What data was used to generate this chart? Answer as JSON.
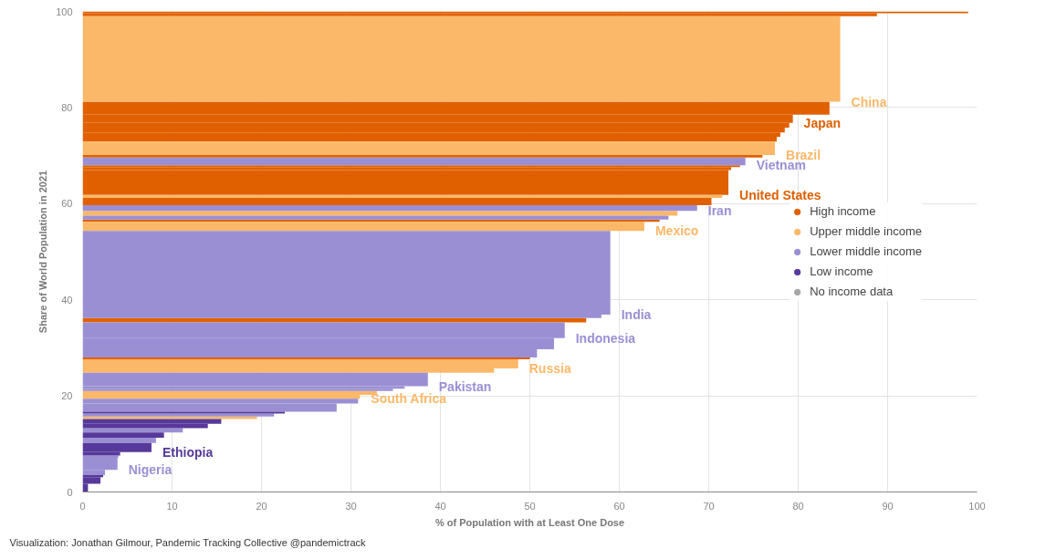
{
  "chart_data": {
    "type": "bar",
    "orientation": "horizontal",
    "xlabel": "% of Population with at Least One Dose",
    "ylabel": "Share of World Population in 2021",
    "x": [
      0.85,
      2.4,
      3.3,
      4.05,
      5.85,
      7.35,
      7.95,
      9.25,
      10.75,
      11.85,
      12.85,
      13.75,
      14.7,
      15.45,
      16.0,
      16.5,
      17.55,
      18.9,
      19.8,
      20.6,
      21.25,
      21.75,
      23.4,
      25.25,
      26.65,
      27.8,
      28.85,
      30.85,
      33.65,
      35.75,
      36.55,
      45.6,
      55.25,
      56.45,
      57.1,
      58.0,
      59.1,
      60.45,
      61.5,
      64.4,
      67.3,
      67.8,
      68.8,
      69.85,
      71.5,
      73.4,
      74.35,
      75.3,
      76.3,
      77.65,
      79.85,
      90.1,
      99.3,
      99.8
    ],
    "series": [
      {
        "name": "High income",
        "color": "#e06000",
        "values": [
          null,
          null,
          null,
          null,
          null,
          null,
          null,
          null,
          null,
          null,
          null,
          null,
          null,
          null,
          null,
          null,
          null,
          null,
          null,
          null,
          null,
          null,
          null,
          null,
          null,
          50.0,
          null,
          null,
          null,
          56.3,
          null,
          null,
          null,
          64.5,
          null,
          null,
          null,
          70.3,
          null,
          72.2,
          72.5,
          73.5,
          null,
          76.0,
          null,
          77.6,
          78.0,
          78.5,
          79.0,
          79.4,
          83.5,
          null,
          88.8,
          99.0
        ],
        "value_labels": [
          null,
          null,
          null,
          null,
          null,
          null,
          null,
          null,
          null,
          null,
          null,
          null,
          null,
          null,
          null,
          null,
          null,
          null,
          null,
          null,
          null,
          null,
          null,
          null,
          null,
          null,
          null,
          null,
          null,
          null,
          null,
          null,
          null,
          null,
          null,
          null,
          null,
          null,
          null,
          "United States",
          null,
          null,
          null,
          null,
          null,
          null,
          null,
          null,
          null,
          "Japan",
          null,
          null,
          null,
          null
        ]
      },
      {
        "name": "Upper middle income",
        "color": "#fbb868",
        "values": [
          null,
          null,
          null,
          null,
          null,
          null,
          null,
          null,
          null,
          null,
          null,
          null,
          null,
          19.5,
          null,
          null,
          null,
          null,
          31.0,
          32.9,
          null,
          null,
          null,
          46.0,
          48.7,
          null,
          null,
          null,
          null,
          null,
          null,
          null,
          62.8,
          null,
          null,
          66.5,
          null,
          null,
          71.5,
          null,
          null,
          null,
          null,
          null,
          77.4,
          null,
          null,
          null,
          null,
          null,
          null,
          84.7,
          null,
          null
        ],
        "value_labels": [
          null,
          null,
          null,
          null,
          null,
          null,
          null,
          null,
          null,
          null,
          null,
          null,
          null,
          null,
          null,
          null,
          null,
          null,
          "South Africa",
          null,
          null,
          null,
          null,
          null,
          "Russia",
          null,
          null,
          null,
          null,
          null,
          null,
          null,
          "Mexico",
          null,
          null,
          null,
          null,
          null,
          null,
          null,
          null,
          null,
          null,
          null,
          "Brazil",
          null,
          null,
          null,
          null,
          null,
          null,
          "China",
          null,
          null
        ]
      },
      {
        "name": "Lower middle income",
        "color": "#9b8fd4",
        "values": [
          null,
          null,
          null,
          2.5,
          3.9,
          4.0,
          null,
          null,
          8.2,
          null,
          11.2,
          null,
          null,
          null,
          21.4,
          null,
          28.4,
          30.8,
          null,
          null,
          34.7,
          36.0,
          38.6,
          null,
          null,
          null,
          50.8,
          52.7,
          53.9,
          null,
          58.0,
          59.0,
          null,
          null,
          65.5,
          null,
          68.7,
          null,
          null,
          null,
          null,
          null,
          74.1,
          null,
          null,
          null,
          null,
          null,
          null,
          null,
          null,
          null,
          null,
          null
        ],
        "value_labels": [
          null,
          null,
          null,
          null,
          "Nigeria",
          null,
          null,
          null,
          null,
          null,
          null,
          null,
          null,
          null,
          null,
          null,
          null,
          null,
          null,
          null,
          null,
          null,
          "Pakistan",
          null,
          null,
          null,
          null,
          null,
          "Indonesia",
          null,
          null,
          "India",
          null,
          null,
          null,
          null,
          "Iran",
          null,
          null,
          null,
          null,
          null,
          "Vietnam",
          null,
          null,
          null,
          null,
          null,
          null,
          null,
          null,
          null,
          null,
          null
        ]
      },
      {
        "name": "Low income",
        "color": "#56399a",
        "values": [
          0.6,
          2.0,
          2.3,
          null,
          null,
          null,
          4.2,
          7.7,
          null,
          9.1,
          null,
          14.0,
          15.5,
          null,
          null,
          22.6,
          null,
          null,
          null,
          null,
          null,
          null,
          null,
          null,
          null,
          null,
          null,
          null,
          null,
          null,
          null,
          null,
          null,
          null,
          null,
          null,
          null,
          null,
          null,
          null,
          null,
          null,
          null,
          null,
          null,
          null,
          null,
          null,
          null,
          null,
          null,
          null,
          null,
          null
        ],
        "value_labels": [
          null,
          null,
          null,
          null,
          null,
          null,
          null,
          "Ethiopia",
          null,
          null,
          null,
          null,
          null,
          null,
          null,
          null,
          null,
          null,
          null,
          null,
          null,
          null,
          null,
          null,
          null,
          null,
          null,
          null,
          null,
          null,
          null,
          null,
          null,
          null,
          null,
          null,
          null,
          null,
          null,
          null,
          null,
          null,
          null,
          null,
          null,
          null,
          null,
          null,
          null,
          null,
          null,
          null,
          null,
          null
        ]
      },
      {
        "name": "No income data",
        "color": "#a5a5a5",
        "values": [
          null,
          null,
          null,
          null,
          null,
          null,
          null,
          null,
          null,
          null,
          null,
          null,
          null,
          null,
          null,
          null,
          null,
          null,
          null,
          null,
          null,
          null,
          null,
          null,
          null,
          null,
          null,
          null,
          null,
          null,
          null,
          null,
          null,
          null,
          null,
          null,
          null,
          null,
          null,
          null,
          null,
          null,
          null,
          null,
          null,
          null,
          null,
          null,
          null,
          null,
          null,
          null,
          null,
          null
        ]
      }
    ],
    "xlim": [
      0,
      100
    ],
    "xticks": [
      0,
      10,
      20,
      30,
      40,
      50,
      60,
      70,
      80,
      90,
      100
    ],
    "ylim": [
      0,
      100
    ],
    "yticks": [
      0,
      20,
      40,
      60,
      80,
      100
    ],
    "grid": true,
    "legend": "right",
    "marker": "circle",
    "annotations": [
      "Visualization: Jonathan Gilmour, Pandemic Tracking Collective @pandemictrack"
    ]
  }
}
